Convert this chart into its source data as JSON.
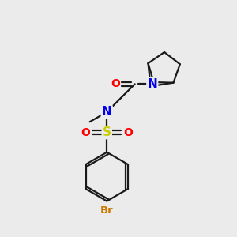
{
  "background_color": "#ebebeb",
  "bond_color": "#1a1a1a",
  "atom_colors": {
    "O": "#ff0000",
    "N": "#0000ee",
    "S": "#cccc00",
    "Br": "#cc7700",
    "C": "#1a1a1a"
  },
  "lw": 1.6,
  "fs": 10
}
